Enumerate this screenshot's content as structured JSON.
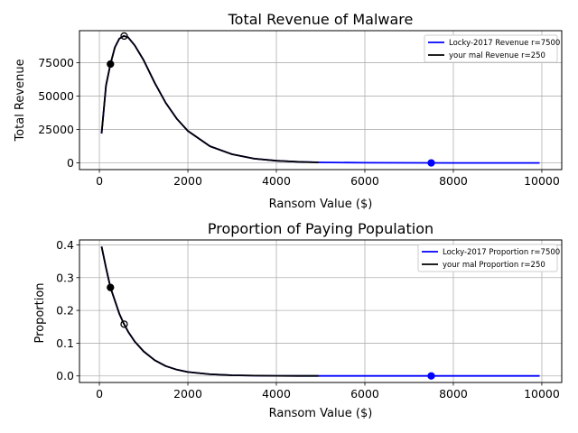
{
  "chart_data": [
    {
      "type": "line",
      "title": "Total Revenue of Malware",
      "xlabel": "Ransom Value ($)",
      "ylabel": "Total Revenue",
      "xlim": [
        -450,
        10450
      ],
      "ylim": [
        -5000,
        99000
      ],
      "xticks": [
        0,
        2000,
        4000,
        6000,
        8000,
        10000
      ],
      "xtick_labels": [
        "0",
        "2000",
        "4000",
        "6000",
        "8000",
        "10000"
      ],
      "yticks": [
        0,
        25000,
        50000,
        75000
      ],
      "ytick_labels": [
        "0",
        "25000",
        "50000",
        "75000"
      ],
      "grid": true,
      "legend_position": "top-right",
      "series": [
        {
          "name": "Locky-2017 Revenue r=7500",
          "color": "#0000ff",
          "x": [
            50,
            150,
            250,
            350,
            450,
            550,
            650,
            800,
            1000,
            1250,
            1500,
            1750,
            2000,
            2500,
            3000,
            3500,
            4000,
            4500,
            5000,
            6000,
            7000,
            8000,
            9000,
            9950
          ],
          "y": [
            22000,
            58000,
            74000,
            86500,
            93000,
            95000,
            94000,
            88000,
            77000,
            60000,
            45000,
            33000,
            24000,
            12500,
            6500,
            3200,
            1600,
            800,
            400,
            120,
            40,
            15,
            5,
            2
          ]
        },
        {
          "name": "your mal Revenue r=250",
          "color": "#000000",
          "x": [
            50,
            150,
            250,
            350,
            450,
            550,
            650,
            800,
            1000,
            1250,
            1500,
            1750,
            2000,
            2500,
            3000,
            3500,
            4000,
            4500,
            4950
          ],
          "y": [
            22000,
            58000,
            74000,
            86500,
            93000,
            95000,
            94000,
            88000,
            77000,
            60000,
            45000,
            33000,
            24000,
            12500,
            6500,
            3200,
            1600,
            800,
            400
          ]
        }
      ],
      "markers": [
        {
          "x": 250,
          "y": 74000,
          "color": "#000000",
          "style": "filled"
        },
        {
          "x": 560,
          "y": 95000,
          "color": "#000000",
          "style": "open"
        },
        {
          "x": 7500,
          "y": 0,
          "color": "#0000ff",
          "style": "filled"
        }
      ]
    },
    {
      "type": "line",
      "title": "Proportion of Paying Population",
      "xlabel": "Ransom Value ($)",
      "ylabel": "Proportion",
      "xlim": [
        -450,
        10450
      ],
      "ylim": [
        -0.02,
        0.415
      ],
      "xticks": [
        0,
        2000,
        4000,
        6000,
        8000,
        10000
      ],
      "xtick_labels": [
        "0",
        "2000",
        "4000",
        "6000",
        "8000",
        "10000"
      ],
      "yticks": [
        0.0,
        0.1,
        0.2,
        0.3,
        0.4
      ],
      "ytick_labels": [
        "0.0",
        "0.1",
        "0.2",
        "0.3",
        "0.4"
      ],
      "grid": true,
      "legend_position": "top-right",
      "series": [
        {
          "name": "Locky-2017 Proportion r=7500",
          "color": "#0000ff",
          "x": [
            50,
            150,
            250,
            350,
            450,
            550,
            650,
            800,
            1000,
            1250,
            1500,
            1750,
            2000,
            2500,
            3000,
            3500,
            4000,
            4500,
            5000,
            6000,
            7000,
            8000,
            9000,
            9950
          ],
          "y": [
            0.395,
            0.33,
            0.27,
            0.23,
            0.19,
            0.16,
            0.135,
            0.105,
            0.075,
            0.048,
            0.03,
            0.019,
            0.012,
            0.005,
            0.002,
            0.001,
            0.0005,
            0.0002,
            0.0001,
            0,
            0,
            0,
            0,
            0
          ]
        },
        {
          "name": "your mal Proportion r=250",
          "color": "#000000",
          "x": [
            50,
            150,
            250,
            350,
            450,
            550,
            650,
            800,
            1000,
            1250,
            1500,
            1750,
            2000,
            2500,
            3000,
            3500,
            4000,
            4500,
            4950
          ],
          "y": [
            0.395,
            0.33,
            0.27,
            0.23,
            0.19,
            0.16,
            0.135,
            0.105,
            0.075,
            0.048,
            0.03,
            0.019,
            0.012,
            0.005,
            0.002,
            0.001,
            0.0005,
            0.0002,
            0.0001
          ]
        }
      ],
      "markers": [
        {
          "x": 250,
          "y": 0.27,
          "color": "#000000",
          "style": "filled"
        },
        {
          "x": 560,
          "y": 0.158,
          "color": "#000000",
          "style": "open"
        },
        {
          "x": 7500,
          "y": 0,
          "color": "#0000ff",
          "style": "filled"
        }
      ]
    }
  ]
}
